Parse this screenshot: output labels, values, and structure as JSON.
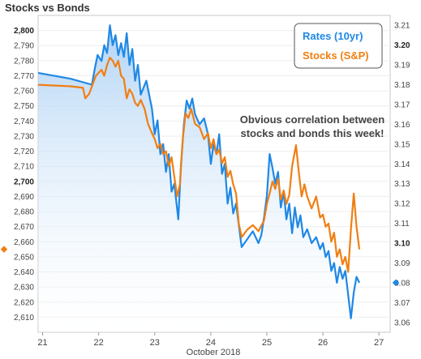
{
  "title": "Stocks vs Bonds",
  "chart_data": {
    "type": "line",
    "annotation": [
      "Obvious correlation between",
      "stocks and bonds this week!"
    ],
    "xlabel": "October 2018",
    "x_ticks": [
      "21",
      "22",
      "23",
      "24",
      "25",
      "26",
      "27"
    ],
    "xlim": [
      20.92,
      27.2
    ],
    "left_axis": {
      "ylim": [
        2600,
        2810
      ],
      "ticks": [
        2610,
        2620,
        2630,
        2640,
        2650,
        2660,
        2670,
        2680,
        2690,
        2700,
        2710,
        2720,
        2730,
        2740,
        2750,
        2760,
        2770,
        2780,
        2790,
        2800
      ],
      "tick_labels": [
        "2,610",
        "2,620",
        "2,630",
        "2,640",
        "2,650",
        "2,660",
        "2,670",
        "2,680",
        "2,690",
        "2,700",
        "2,710",
        "2,720",
        "2,730",
        "2,740",
        "2,750",
        "2,760",
        "2,770",
        "2,780",
        "2,790",
        "2,800"
      ],
      "bold_ticks": [
        2700,
        2800
      ]
    },
    "right_axis": {
      "ylim": [
        3.055,
        3.215
      ],
      "ticks": [
        3.06,
        3.07,
        3.08,
        3.09,
        3.1,
        3.11,
        3.12,
        3.13,
        3.14,
        3.15,
        3.16,
        3.17,
        3.18,
        3.19,
        3.2,
        3.21
      ],
      "tick_labels": [
        "3.06",
        "3.07",
        "3.08",
        "3.09",
        "3.10",
        "3.11",
        "3.12",
        "3.13",
        "3.14",
        "3.15",
        "3.16",
        "3.17",
        "3.18",
        "3.19",
        "3.20",
        "3.21"
      ],
      "bold_ticks": [
        3.1,
        3.2
      ]
    },
    "legend": {
      "placement": "top-right"
    },
    "series": [
      {
        "name": "Rates (10yr)",
        "axis": "right",
        "color": "#1e88e5",
        "fill": true,
        "x": [
          20.92,
          21.5,
          21.88,
          21.93,
          21.98,
          22.05,
          22.1,
          22.15,
          22.2,
          22.25,
          22.3,
          22.35,
          22.4,
          22.45,
          22.5,
          22.55,
          22.6,
          22.65,
          22.7,
          22.75,
          22.85,
          22.95,
          23.0,
          23.05,
          23.1,
          23.15,
          23.2,
          23.25,
          23.3,
          23.35,
          23.42,
          23.47,
          23.52,
          23.57,
          23.62,
          23.67,
          23.72,
          23.8,
          23.88,
          23.95,
          24.0,
          24.05,
          24.1,
          24.15,
          24.2,
          24.25,
          24.3,
          24.35,
          24.4,
          24.45,
          24.55,
          24.65,
          24.75,
          24.85,
          24.9,
          24.95,
          25.0,
          25.05,
          25.1,
          25.15,
          25.2,
          25.25,
          25.3,
          25.35,
          25.4,
          25.45,
          25.5,
          25.55,
          25.6,
          25.65,
          25.72,
          25.8,
          25.88,
          25.95,
          26.0,
          26.05,
          26.1,
          26.15,
          26.2,
          26.25,
          26.3,
          26.35,
          26.4,
          26.45,
          26.5,
          26.55,
          26.6,
          26.65
        ],
        "values": [
          3.186,
          3.183,
          3.18,
          3.188,
          3.195,
          3.192,
          3.2,
          3.196,
          3.21,
          3.2,
          3.205,
          3.195,
          3.201,
          3.194,
          3.206,
          3.19,
          3.198,
          3.182,
          3.19,
          3.175,
          3.182,
          3.168,
          3.155,
          3.162,
          3.145,
          3.15,
          3.136,
          3.145,
          3.126,
          3.13,
          3.112,
          3.14,
          3.16,
          3.172,
          3.168,
          3.173,
          3.165,
          3.16,
          3.163,
          3.155,
          3.14,
          3.15,
          3.145,
          3.155,
          3.135,
          3.14,
          3.12,
          3.128,
          3.115,
          3.12,
          3.098,
          3.102,
          3.106,
          3.1,
          3.104,
          3.113,
          3.124,
          3.145,
          3.138,
          3.13,
          3.136,
          3.118,
          3.126,
          3.112,
          3.12,
          3.105,
          3.118,
          3.108,
          3.114,
          3.103,
          3.107,
          3.1,
          3.103,
          3.097,
          3.1,
          3.093,
          3.096,
          3.086,
          3.09,
          3.08,
          3.088,
          3.082,
          3.086,
          3.074,
          3.062,
          3.075,
          3.083,
          3.08
        ]
      },
      {
        "name": "Stocks (S&P)",
        "axis": "left",
        "color": "#f07f13",
        "fill": false,
        "x": [
          20.92,
          21.5,
          21.72,
          21.76,
          21.83,
          21.9,
          21.95,
          22.0,
          22.05,
          22.1,
          22.15,
          22.2,
          22.25,
          22.3,
          22.35,
          22.4,
          22.45,
          22.5,
          22.55,
          22.6,
          22.65,
          22.7,
          22.75,
          22.82,
          22.88,
          22.95,
          23.0,
          23.05,
          23.1,
          23.15,
          23.2,
          23.25,
          23.3,
          23.35,
          23.4,
          23.45,
          23.5,
          23.55,
          23.6,
          23.65,
          23.72,
          23.8,
          23.88,
          23.95,
          24.0,
          24.05,
          24.1,
          24.15,
          24.2,
          24.25,
          24.3,
          24.35,
          24.4,
          24.45,
          24.5,
          24.55,
          24.65,
          24.75,
          24.85,
          24.95,
          25.0,
          25.05,
          25.1,
          25.15,
          25.2,
          25.25,
          25.3,
          25.35,
          25.4,
          25.45,
          25.52,
          25.57,
          25.62,
          25.67,
          25.72,
          25.8,
          25.88,
          25.95,
          26.0,
          26.05,
          26.1,
          26.15,
          26.2,
          26.25,
          26.3,
          26.35,
          26.4,
          26.45,
          26.5,
          26.55,
          26.6,
          26.65
        ],
        "values": [
          2764,
          2763,
          2762,
          2755,
          2758,
          2765,
          2770,
          2772,
          2774,
          2770,
          2777,
          2782,
          2780,
          2776,
          2780,
          2770,
          2768,
          2755,
          2761,
          2758,
          2752,
          2750,
          2754,
          2748,
          2738,
          2732,
          2728,
          2722,
          2725,
          2718,
          2720,
          2710,
          2716,
          2703,
          2690,
          2698,
          2728,
          2745,
          2742,
          2748,
          2738,
          2736,
          2728,
          2732,
          2722,
          2728,
          2718,
          2721,
          2712,
          2716,
          2703,
          2707,
          2698,
          2692,
          2672,
          2663,
          2668,
          2671,
          2667,
          2674,
          2685,
          2692,
          2700,
          2695,
          2702,
          2688,
          2694,
          2685,
          2691,
          2710,
          2724,
          2706,
          2690,
          2698,
          2690,
          2682,
          2690,
          2676,
          2678,
          2670,
          2672,
          2660,
          2666,
          2650,
          2655,
          2645,
          2650,
          2640,
          2668,
          2692,
          2670,
          2655
        ]
      }
    ]
  }
}
